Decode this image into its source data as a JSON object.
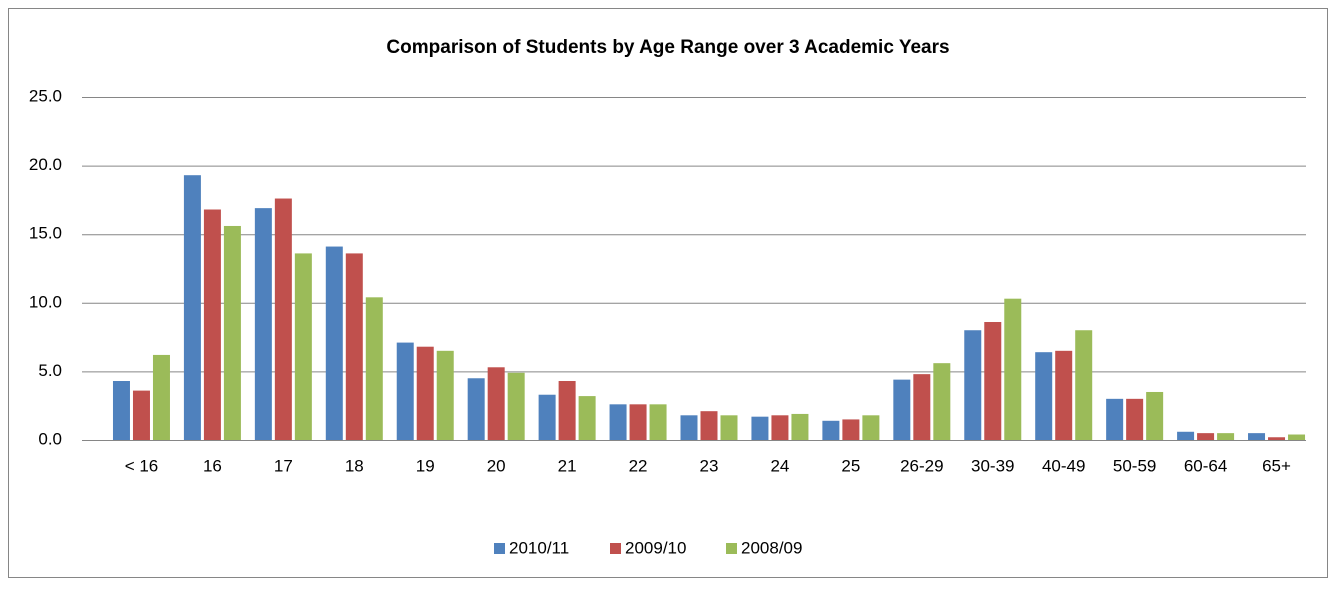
{
  "chart_data": {
    "type": "bar",
    "title": "Comparison of Students by Age Range over 3 Academic Years",
    "categories": [
      "< 16",
      "16",
      "17",
      "18",
      "19",
      "20",
      "21",
      "22",
      "23",
      "24",
      "25",
      "26-29",
      "30-39",
      "40-49",
      "50-59",
      "60-64",
      "65+"
    ],
    "series": [
      {
        "name": "2010/11",
        "color": "#4f81bd",
        "values": [
          4.3,
          19.3,
          16.9,
          14.1,
          7.1,
          4.5,
          3.3,
          2.6,
          1.8,
          1.7,
          1.4,
          4.4,
          8.0,
          6.4,
          3.0,
          0.6,
          0.5
        ]
      },
      {
        "name": "2009/10",
        "color": "#c0504d",
        "values": [
          3.6,
          16.8,
          17.6,
          13.6,
          6.8,
          5.3,
          4.3,
          2.6,
          2.1,
          1.8,
          1.5,
          4.8,
          8.6,
          6.5,
          3.0,
          0.5,
          0.2
        ]
      },
      {
        "name": "2008/09",
        "color": "#9bbb59",
        "values": [
          6.2,
          15.6,
          13.6,
          10.4,
          6.5,
          4.9,
          3.2,
          2.6,
          1.8,
          1.9,
          1.8,
          5.6,
          10.3,
          8.0,
          3.5,
          0.5,
          0.4
        ]
      }
    ],
    "ylim": [
      0,
      25
    ],
    "yticks": [
      {
        "value": 0,
        "label": "0.0"
      },
      {
        "value": 5,
        "label": "5.0"
      },
      {
        "value": 10,
        "label": "10.0"
      },
      {
        "value": 15,
        "label": "15.0"
      },
      {
        "value": 20,
        "label": "20.0"
      },
      {
        "value": 25,
        "label": "25.0"
      }
    ],
    "grid": true,
    "legend": "bottom"
  }
}
